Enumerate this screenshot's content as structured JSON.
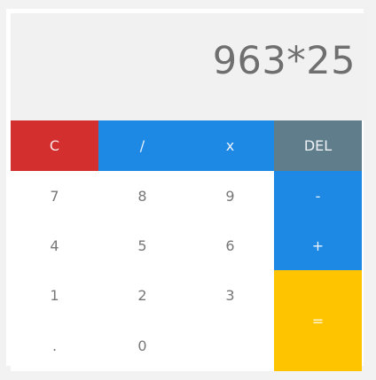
{
  "display": {
    "value": "963*25"
  },
  "buttons": {
    "clear": "C",
    "divide": "/",
    "multiply": "x",
    "delete": "DEL",
    "seven": "7",
    "eight": "8",
    "nine": "9",
    "minus": "-",
    "four": "4",
    "five": "5",
    "six": "6",
    "plus": "+",
    "one": "1",
    "two": "2",
    "three": "3",
    "equals": "=",
    "decimal": ".",
    "zero": "0"
  },
  "colors": {
    "clear_bg": "#d32f2f",
    "operator_bg": "#1e88e5",
    "delete_bg": "#607d8b",
    "equals_bg": "#ffc400",
    "display_bg": "#f1f1f1",
    "display_text": "#6f6f6f"
  }
}
